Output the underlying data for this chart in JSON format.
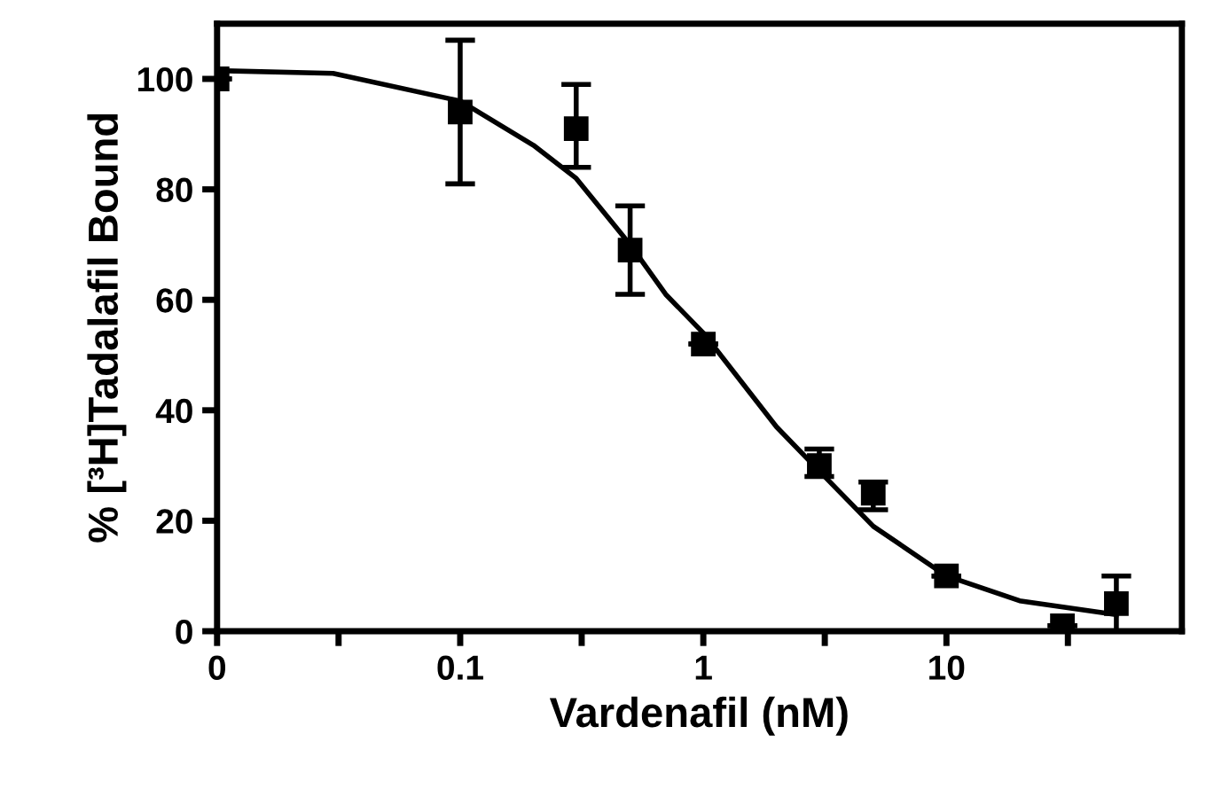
{
  "chart_data": {
    "type": "scatter",
    "xlabel": "Vardenafil (nM)",
    "ylabel": "% [³H]Tadalafil Bound",
    "log": "x",
    "marker": "square",
    "grid": false,
    "legend": false,
    "xlim": [
      0.01,
      93
    ],
    "ylim": [
      0,
      110
    ],
    "xticks": [
      {
        "value": 0.01,
        "label": "0"
      },
      {
        "value": 0.0316,
        "label": null
      },
      0.1,
      {
        "value": 0.316,
        "label": null
      },
      1,
      {
        "value": 3.16,
        "label": null
      },
      10,
      {
        "value": 31.6,
        "label": null
      }
    ],
    "yticks": [
      0,
      20,
      40,
      60,
      80,
      100
    ],
    "series": [
      {
        "color": "#000000",
        "x": [
          0.01,
          0.1,
          0.3,
          0.5,
          1,
          3,
          5,
          10,
          30,
          50
        ],
        "values": [
          100,
          94,
          91,
          69,
          52,
          30,
          25,
          10,
          1,
          5
        ],
        "errors": [
          null,
          13,
          [
            84,
            99
          ],
          [
            61,
            77
          ],
          null,
          [
            28,
            33
          ],
          [
            22,
            27
          ],
          null,
          null,
          [
            0,
            10
          ]
        ]
      },
      {
        "type": "line",
        "color": "#000000",
        "line_style": "solid",
        "marker": "none",
        "x": [
          0.01,
          0.03,
          0.1,
          0.2,
          0.3,
          0.5,
          0.7,
          1,
          2,
          3,
          5,
          10,
          20,
          50
        ],
        "values": [
          101.5,
          101,
          96,
          88,
          82,
          70,
          61,
          54,
          37,
          29,
          19,
          10,
          5.5,
          3
        ]
      }
    ]
  }
}
